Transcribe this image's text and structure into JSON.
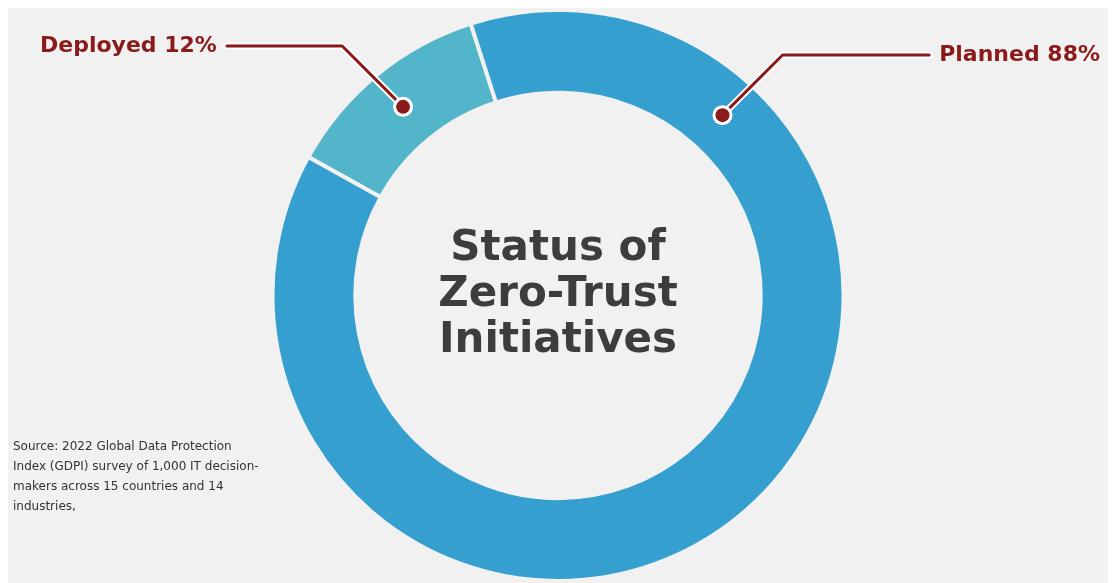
{
  "chart_data": {
    "type": "donut",
    "title": "Status of Zero-Trust Initiatives",
    "categories": [
      "Deployed",
      "Planned"
    ],
    "values": [
      12,
      88
    ],
    "value_labels": [
      "12%",
      "88%"
    ],
    "colors": [
      "#52b5c9",
      "#359fcf"
    ],
    "legend": false,
    "annotations": [
      "Source: 2022 Global Data Protection Index (GDPI) survey of 1,000 IT decision-makers across 15 countries and 14 industries,"
    ]
  }
}
